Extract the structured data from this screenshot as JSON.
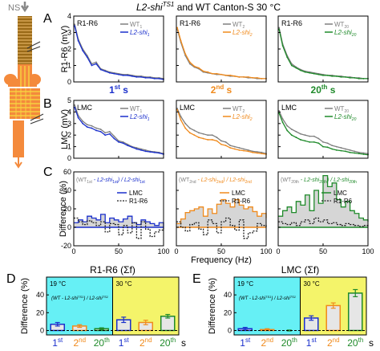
{
  "figure": {
    "title_main": "L2-shi",
    "title_sup": "TS1",
    "title_rest": " and WT Canton-S 30 °C",
    "ns_label": "NS",
    "panel_letters": [
      "A",
      "B",
      "C",
      "D",
      "E"
    ],
    "colors": {
      "blue": "#1a2fcc",
      "orange": "#f08a1c",
      "green": "#1f8a2a",
      "gray": "#7f7f7f",
      "cyan": "#66f0f5",
      "yellow": "#f4f46a",
      "anatomy": "#f48a3c",
      "stripes": "#8a5a10"
    }
  },
  "chart_data": [
    {
      "type": "line",
      "panel": "A",
      "ylabel": "R1-R6 (mV)",
      "inset_label": "R1-R6",
      "ylim": [
        0,
        4
      ],
      "yticks": [
        0,
        1,
        2,
        3,
        4
      ],
      "xlim": [
        0,
        100
      ],
      "x": [
        1,
        5,
        10,
        15,
        20,
        25,
        30,
        35,
        40,
        45,
        50,
        55,
        60,
        65,
        70,
        75,
        80,
        85,
        90,
        95,
        100
      ],
      "columns": [
        {
          "subtitle": "1st s",
          "color": "blue",
          "series": [
            {
              "name": "WT 1st",
              "values": [
                3.5,
                2.6,
                2.0,
                1.6,
                1.1,
                1.2,
                0.8,
                0.7,
                0.6,
                0.55,
                0.5,
                0.45,
                0.45,
                0.4,
                0.35,
                0.35,
                0.3,
                0.3,
                0.25,
                0.25,
                0.2
              ]
            },
            {
              "name": "L2-shi 1st",
              "values": [
                3.4,
                2.5,
                1.9,
                1.5,
                1.0,
                1.1,
                0.75,
                0.65,
                0.55,
                0.5,
                0.45,
                0.4,
                0.4,
                0.35,
                0.3,
                0.3,
                0.25,
                0.25,
                0.2,
                0.2,
                0.15
              ]
            }
          ]
        },
        {
          "subtitle": "2nd s",
          "color": "orange",
          "series": [
            {
              "name": "WT 2nd",
              "values": [
                3.2,
                2.4,
                1.6,
                1.1,
                0.9,
                0.8,
                0.6,
                0.55,
                0.5,
                0.45,
                0.45,
                0.4,
                0.35,
                0.35,
                0.3,
                0.3,
                0.25,
                0.25,
                0.2,
                0.2,
                0.2
              ]
            },
            {
              "name": "L2-shi 2nd",
              "values": [
                3.3,
                2.5,
                1.7,
                1.2,
                0.95,
                0.85,
                0.65,
                0.6,
                0.5,
                0.5,
                0.45,
                0.4,
                0.4,
                0.35,
                0.3,
                0.3,
                0.3,
                0.25,
                0.25,
                0.2,
                0.2
              ]
            }
          ]
        },
        {
          "subtitle": "20th s",
          "color": "green",
          "series": [
            {
              "name": "WT 20th",
              "values": [
                3.3,
                2.3,
                1.6,
                1.1,
                0.9,
                0.75,
                0.65,
                0.6,
                0.55,
                0.5,
                0.45,
                0.4,
                0.4,
                0.35,
                0.35,
                0.3,
                0.3,
                0.25,
                0.25,
                0.2,
                0.2
              ]
            },
            {
              "name": "L2-shi 20th",
              "values": [
                3.2,
                2.2,
                1.5,
                1.0,
                0.85,
                0.7,
                0.6,
                0.55,
                0.5,
                0.45,
                0.4,
                0.4,
                0.35,
                0.35,
                0.3,
                0.3,
                0.25,
                0.25,
                0.2,
                0.2,
                0.2
              ]
            }
          ]
        }
      ]
    },
    {
      "type": "line",
      "panel": "B",
      "ylabel": "LMC (mV)",
      "inset_label": "LMC",
      "ylim": [
        0,
        5
      ],
      "yticks": [
        0,
        1,
        2,
        3,
        4,
        5
      ],
      "xlim": [
        0,
        100
      ],
      "x": [
        1,
        5,
        10,
        15,
        20,
        25,
        30,
        35,
        40,
        45,
        50,
        55,
        60,
        65,
        70,
        75,
        80,
        85,
        90,
        95,
        100
      ],
      "columns": [
        {
          "color": "blue",
          "series": [
            {
              "name": "WT 1st",
              "values": [
                4.6,
                3.7,
                3.2,
                2.9,
                2.8,
                2.6,
                2.5,
                2.2,
                2.3,
                1.9,
                1.5,
                1.4,
                1.2,
                1.0,
                0.9,
                0.8,
                0.7,
                0.6,
                0.55,
                0.5,
                0.4
              ]
            },
            {
              "name": "L2-shi 1st",
              "values": [
                4.4,
                3.5,
                3.0,
                2.7,
                2.6,
                2.4,
                2.3,
                2.0,
                2.1,
                1.7,
                1.4,
                1.3,
                1.1,
                0.95,
                0.8,
                0.7,
                0.6,
                0.55,
                0.5,
                0.45,
                0.35
              ]
            }
          ]
        },
        {
          "color": "orange",
          "series": [
            {
              "name": "WT 2nd",
              "values": [
                4.3,
                3.6,
                3.0,
                2.6,
                2.4,
                2.2,
                2.1,
                2.0,
                2.0,
                1.8,
                1.5,
                1.4,
                1.1,
                1.0,
                0.9,
                0.8,
                0.7,
                0.6,
                0.55,
                0.5,
                0.4
              ]
            },
            {
              "name": "L2-shi 2nd",
              "values": [
                4.2,
                3.3,
                2.6,
                2.2,
                2.0,
                1.8,
                1.7,
                1.6,
                1.6,
                1.5,
                1.2,
                1.1,
                0.9,
                0.8,
                0.7,
                0.65,
                0.6,
                0.5,
                0.45,
                0.4,
                0.35
              ]
            }
          ]
        },
        {
          "color": "green",
          "series": [
            {
              "name": "WT 20th",
              "values": [
                4.1,
                3.4,
                2.8,
                2.5,
                2.3,
                2.1,
                2.0,
                1.9,
                1.9,
                1.7,
                1.4,
                1.3,
                1.1,
                1.0,
                0.9,
                0.8,
                0.7,
                0.6,
                0.5,
                0.45,
                0.4
              ]
            },
            {
              "name": "L2-shi 20th",
              "values": [
                3.9,
                3.1,
                2.4,
                2.0,
                1.8,
                1.6,
                1.5,
                1.4,
                1.4,
                1.3,
                1.0,
                0.95,
                0.8,
                0.7,
                0.65,
                0.6,
                0.5,
                0.45,
                0.4,
                0.35,
                0.3
              ]
            }
          ]
        }
      ]
    },
    {
      "type": "line",
      "panel": "C",
      "ylabel": "Difference (%)",
      "xlabel": "Frequency (Hz)",
      "ylim": [
        -20,
        60
      ],
      "yticks": [
        -20,
        0,
        20,
        40,
        60
      ],
      "xlim": [
        0,
        100
      ],
      "xticks": [
        0,
        50,
        100
      ],
      "legend_entries": [
        "LMC",
        "R1-R6"
      ],
      "x": [
        0,
        5,
        10,
        15,
        20,
        25,
        30,
        35,
        40,
        45,
        50,
        55,
        60,
        65,
        70,
        75,
        80,
        85,
        90,
        95,
        100
      ],
      "columns": [
        {
          "color": "blue",
          "formula_parts": [
            "(WT",
            "1st",
            " - L2-shi",
            "1st",
            ") / L2-shi",
            "1st"
          ],
          "series": [
            {
              "name": "LMC",
              "values": [
                5,
                8,
                6,
                12,
                10,
                8,
                14,
                5,
                10,
                8,
                6,
                9,
                12,
                5,
                3,
                8,
                6,
                4,
                2,
                5,
                0
              ]
            },
            {
              "name": "R1-R6",
              "values": [
                10,
                6,
                3,
                7,
                5,
                2,
                6,
                -5,
                4,
                3,
                -8,
                2,
                -6,
                5,
                -12,
                6,
                -2,
                -10,
                -5,
                -3,
                0
              ]
            }
          ]
        },
        {
          "color": "orange",
          "formula_parts": [
            "(WT",
            "2nd",
            " - L2-shi",
            "2nd",
            ") / L2-shi",
            "2nd"
          ],
          "series": [
            {
              "name": "LMC",
              "values": [
                4,
                9,
                16,
                18,
                20,
                22,
                12,
                20,
                15,
                25,
                30,
                26,
                22,
                30,
                24,
                20,
                22,
                17,
                12,
                15,
                10
              ]
            },
            {
              "name": "R1-R6",
              "values": [
                6,
                0,
                -4,
                3,
                5,
                -2,
                -8,
                8,
                4,
                -6,
                6,
                10,
                2,
                -3,
                8,
                -12,
                -6,
                -4,
                4,
                2,
                0
              ]
            }
          ]
        },
        {
          "color": "green",
          "formula_parts": [
            "(WT",
            "20th",
            " - L2-shi",
            "20th",
            ") / L2-shi",
            "20th"
          ],
          "series": [
            {
              "name": "LMC",
              "values": [
                12,
                18,
                22,
                16,
                28,
                24,
                35,
                18,
                40,
                26,
                56,
                44,
                48,
                30,
                22,
                28,
                18,
                15,
                10,
                8,
                6
              ]
            },
            {
              "name": "R1-R6",
              "values": [
                6,
                4,
                3,
                5,
                2,
                6,
                8,
                4,
                10,
                6,
                8,
                4,
                5,
                3,
                2,
                4,
                3,
                2,
                1,
                2,
                0
              ]
            }
          ]
        }
      ]
    },
    {
      "type": "bar",
      "panel": "D",
      "title": "R1-R6 (Σf)",
      "ylabel": "Difference (%)",
      "ylim": [
        -5,
        60
      ],
      "yticks": [
        0,
        20,
        40
      ],
      "bg_labels": [
        "19 °C",
        "30 °C"
      ],
      "formula_parts": [
        "(WT - L2-shi",
        "TS1",
        ") / L2-shi",
        "TS1"
      ],
      "categories": [
        "1st",
        "2nd",
        "20th"
      ],
      "series": [
        {
          "name": "19 °C",
          "values": [
            7,
            5,
            2
          ],
          "errors": [
            2,
            1.5,
            1
          ]
        },
        {
          "name": "30 °C",
          "values": [
            12,
            9,
            16
          ],
          "errors": [
            3,
            2.5,
            2
          ]
        }
      ],
      "x_unit": "s"
    },
    {
      "type": "bar",
      "panel": "E",
      "title": "LMC (Σf)",
      "ylabel": "Difference (%)",
      "ylim": [
        -5,
        60
      ],
      "yticks": [
        0,
        20,
        40
      ],
      "bg_labels": [
        "19 °C",
        "30 °C"
      ],
      "formula_parts": [
        "(WT - L2-shi",
        "TS1",
        ") / L2-shi",
        "TS1"
      ],
      "categories": [
        "1st",
        "2nd",
        "20th"
      ],
      "series": [
        {
          "name": "19 °C",
          "values": [
            2,
            1,
            0
          ],
          "errors": [
            1.5,
            1,
            0.5
          ]
        },
        {
          "name": "30 °C",
          "values": [
            14,
            28,
            42
          ],
          "errors": [
            2.5,
            3,
            4
          ]
        }
      ],
      "x_unit": "s"
    }
  ]
}
